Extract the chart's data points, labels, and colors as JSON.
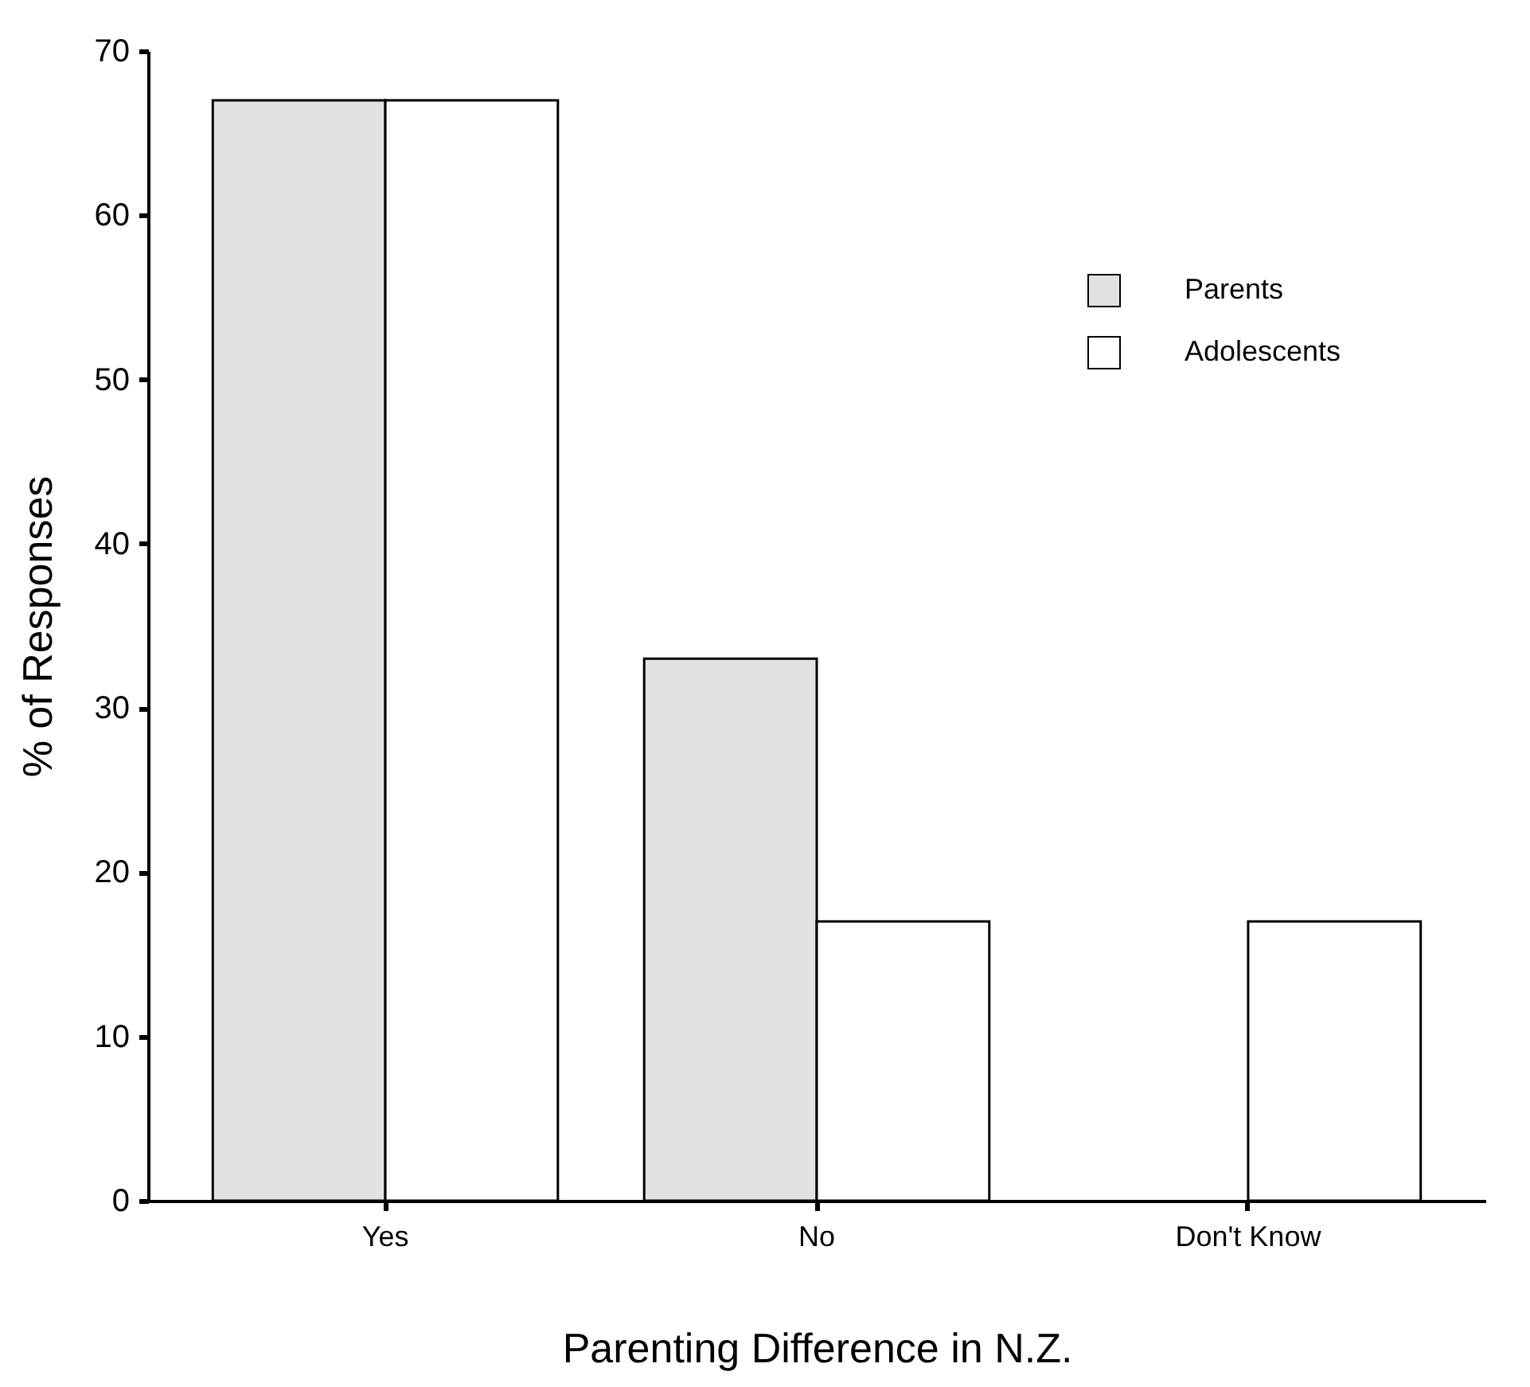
{
  "chart_data": {
    "type": "bar",
    "xlabel": "Parenting Difference in N.Z.",
    "ylabel": "% of Responses",
    "categories": [
      "Yes",
      "No",
      "Don't Know"
    ],
    "series": [
      {
        "name": "Parents",
        "color": "#e2e2e2",
        "values": [
          67,
          33,
          null
        ]
      },
      {
        "name": "Adolescents",
        "color": "#ffffff",
        "values": [
          67,
          17,
          17
        ]
      }
    ],
    "ylim": [
      0,
      70
    ],
    "yticks": [
      0,
      10,
      20,
      30,
      40,
      50,
      60,
      70
    ],
    "grid": false,
    "legend": "top right"
  }
}
